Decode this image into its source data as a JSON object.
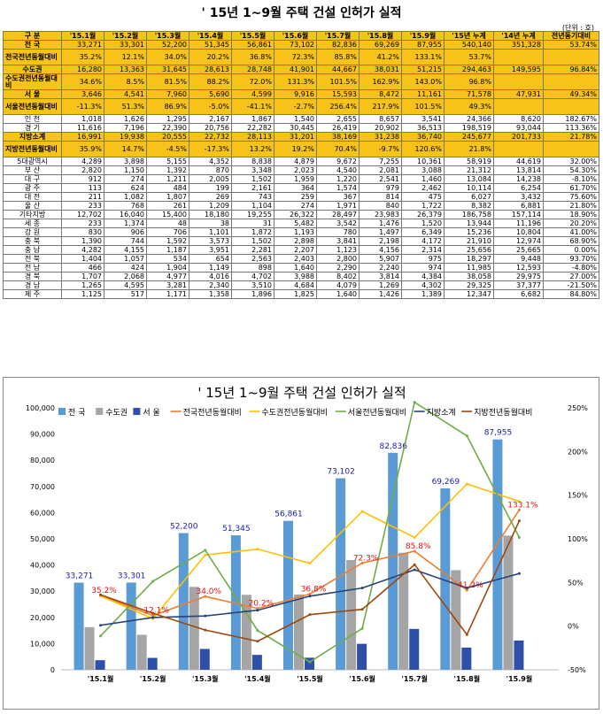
{
  "title": "' 15년 1~9월 주택 건설 인허가 실적",
  "unit": "(단위 : 호)",
  "table": {
    "headers": [
      "구 분",
      "'15.1월",
      "'15.2월",
      "'15.3월",
      "'15.4월",
      "'15.5월",
      "'15.6월",
      "'15.7월",
      "'15.8월",
      "'15.9월",
      "'15년 누계",
      "'14년 누계",
      "전년동기대비"
    ],
    "rows": [
      {
        "label": "전 국",
        "values": [
          "33,271",
          "33,301",
          "52,200",
          "51,345",
          "56,861",
          "73,102",
          "82,836",
          "69,269",
          "87,955",
          "540,140",
          "351,328",
          "53.74%"
        ],
        "hl": true
      },
      {
        "label": "전국전년동월대비",
        "values": [
          "35.2%",
          "12.1%",
          "34.0%",
          "20.2%",
          "36.8%",
          "72.3%",
          "85.8%",
          "41.2%",
          "133.1%",
          "53.7%",
          "",
          ""
        ],
        "hl": true,
        "dbl": true
      },
      {
        "label": "수도권",
        "values": [
          "16,280",
          "13,363",
          "31,645",
          "28,613",
          "28,748",
          "41,901",
          "44,667",
          "38,031",
          "51,215",
          "294,463",
          "149,595",
          "96.84%"
        ],
        "hl": true
      },
      {
        "label": "수도권전년동월대비",
        "values": [
          "34.6%",
          "8.5%",
          "81.5%",
          "88.2%",
          "72.0%",
          "131.3%",
          "101.5%",
          "162.9%",
          "143.0%",
          "96.8%",
          "",
          ""
        ],
        "hl": true,
        "dbl": true
      },
      {
        "label": "서 울",
        "values": [
          "3,646",
          "4,541",
          "7,960",
          "5,690",
          "4,599",
          "9,916",
          "15,593",
          "8,472",
          "11,161",
          "71,578",
          "47,931",
          "49.34%"
        ],
        "hl": true
      },
      {
        "label": "서울전년동월대비",
        "values": [
          "-11.3%",
          "51.3%",
          "86.9%",
          "-5.0%",
          "-41.1%",
          "-2.7%",
          "256.4%",
          "217.9%",
          "101.5%",
          "49.3%",
          "",
          ""
        ],
        "hl": true,
        "dbl": true
      },
      {
        "label": "인 천",
        "values": [
          "1,018",
          "1,626",
          "1,295",
          "2,167",
          "1,867",
          "1,540",
          "2,655",
          "8,657",
          "3,541",
          "24,366",
          "8,620",
          "182.67%"
        ]
      },
      {
        "label": "경 기",
        "values": [
          "11,616",
          "7,196",
          "22,390",
          "20,756",
          "22,282",
          "30,445",
          "26,419",
          "20,902",
          "36,513",
          "198,519",
          "93,044",
          "113.36%"
        ]
      },
      {
        "label": "지방소계",
        "values": [
          "16,991",
          "19,938",
          "20,555",
          "22,732",
          "28,113",
          "31,201",
          "38,169",
          "31,238",
          "36,740",
          "245,677",
          "201,733",
          "21.78%"
        ],
        "hl": true
      },
      {
        "label": "지방전년동월대비",
        "values": [
          "35.9%",
          "14.7%",
          "-4.5%",
          "-17.3%",
          "13.2%",
          "19.2%",
          "70.4%",
          "-9.7%",
          "120.6%",
          "21.8%",
          "",
          ""
        ],
        "hl": true,
        "dbl": true
      },
      {
        "label": "5대광역시",
        "values": [
          "4,289",
          "3,898",
          "5,155",
          "4,352",
          "8,838",
          "4,879",
          "9,672",
          "7,255",
          "10,361",
          "58,919",
          "44,619",
          "32.00%"
        ]
      },
      {
        "label": "부 산",
        "values": [
          "2,820",
          "1,150",
          "1,392",
          "870",
          "3,348",
          "2,023",
          "4,540",
          "2,081",
          "3,088",
          "21,312",
          "13,814",
          "54.30%"
        ]
      },
      {
        "label": "대 구",
        "values": [
          "912",
          "274",
          "1,211",
          "2,005",
          "1,502",
          "1,959",
          "1,220",
          "2,541",
          "1,460",
          "13,084",
          "14,238",
          "-8.10%"
        ]
      },
      {
        "label": "광 주",
        "values": [
          "113",
          "624",
          "484",
          "199",
          "2,161",
          "364",
          "1,574",
          "979",
          "2,462",
          "10,114",
          "6,254",
          "61.70%"
        ]
      },
      {
        "label": "대 전",
        "values": [
          "211",
          "1,082",
          "1,807",
          "269",
          "743",
          "259",
          "367",
          "814",
          "475",
          "6,027",
          "3,432",
          "75.60%"
        ]
      },
      {
        "label": "울 산",
        "values": [
          "233",
          "768",
          "261",
          "1,209",
          "1,104",
          "274",
          "1,971",
          "840",
          "1,722",
          "8,382",
          "6,881",
          "21.80%"
        ]
      },
      {
        "label": "기타지방",
        "values": [
          "12,702",
          "16,040",
          "15,400",
          "18,180",
          "19,255",
          "26,322",
          "28,497",
          "23,983",
          "26,379",
          "186,758",
          "157,114",
          "18.90%"
        ]
      },
      {
        "label": "세 종",
        "values": [
          "233",
          "1,374",
          "48",
          "38",
          "31",
          "5,482",
          "3,542",
          "1,476",
          "1,520",
          "13,944",
          "11,196",
          "20.20%"
        ]
      },
      {
        "label": "강 원",
        "values": [
          "830",
          "906",
          "706",
          "1,101",
          "1,872",
          "1,193",
          "780",
          "1,497",
          "6,349",
          "15,236",
          "10,804",
          "41.00%"
        ]
      },
      {
        "label": "충 북",
        "values": [
          "1,390",
          "744",
          "1,592",
          "3,573",
          "1,502",
          "2,898",
          "3,841",
          "2,198",
          "4,172",
          "21,910",
          "12,974",
          "68.90%"
        ]
      },
      {
        "label": "충 남",
        "values": [
          "4,282",
          "4,155",
          "1,187",
          "3,951",
          "2,281",
          "2,207",
          "1,123",
          "4,156",
          "2,314",
          "25,656",
          "25,665",
          "0.00%"
        ]
      },
      {
        "label": "전 북",
        "values": [
          "1,404",
          "1,057",
          "534",
          "654",
          "2,563",
          "2,403",
          "2,800",
          "5,907",
          "975",
          "18,297",
          "9,448",
          "93.70%"
        ]
      },
      {
        "label": "전 남",
        "values": [
          "466",
          "424",
          "1,904",
          "1,149",
          "898",
          "1,640",
          "2,290",
          "2,240",
          "974",
          "11,985",
          "12,593",
          "-4.80%"
        ]
      },
      {
        "label": "경 북",
        "values": [
          "1,707",
          "2,068",
          "4,977",
          "4,016",
          "4,702",
          "3,988",
          "8,402",
          "3,814",
          "4,384",
          "38,058",
          "29,975",
          "27.00%"
        ]
      },
      {
        "label": "경 남",
        "values": [
          "1,265",
          "4,595",
          "3,281",
          "2,340",
          "3,510",
          "4,684",
          "4,079",
          "1,269",
          "4,302",
          "29,325",
          "37,377",
          "-21.50%"
        ]
      },
      {
        "label": "제 주",
        "values": [
          "1,125",
          "517",
          "1,171",
          "1,358",
          "1,896",
          "1,825",
          "1,640",
          "1,426",
          "1,389",
          "12,347",
          "6,682",
          "84.80%"
        ]
      }
    ]
  },
  "chart_data": {
    "type": "bar",
    "title": "' 15년 1~9월 주택 건설 인허가 실적",
    "categories": [
      "'15.1월",
      "'15.2월",
      "'15.3월",
      "'15.4월",
      "'15.5월",
      "'15.6월",
      "'15.7월",
      "'15.8월",
      "'15.9월"
    ],
    "ylim": [
      0,
      100000
    ],
    "y2lim": [
      -50,
      250
    ],
    "yticks": [
      "100,000",
      "90,000",
      "80,000",
      "70,000",
      "60,000",
      "50,000",
      "40,000",
      "30,000",
      "20,000",
      "10,000",
      "0"
    ],
    "y2ticks": [
      "250%",
      "200%",
      "150%",
      "100%",
      "50%",
      "0%",
      "-50%"
    ],
    "bar_series": [
      {
        "name": "전 국",
        "color": "#5b9bd5",
        "values": [
          33271,
          33301,
          52200,
          51345,
          56861,
          73102,
          82836,
          69269,
          87955
        ],
        "labels": [
          "33,271",
          "33,301",
          "52,200",
          "51,345",
          "56,861",
          "73,102",
          "82,836",
          "69,269",
          "87,955"
        ]
      },
      {
        "name": "수도권",
        "color": "#a5a5a5",
        "values": [
          16280,
          13363,
          31645,
          28613,
          28748,
          41901,
          44667,
          38031,
          51215
        ]
      },
      {
        "name": "서 울",
        "color": "#2f4fa8",
        "values": [
          3646,
          4541,
          7960,
          5690,
          4599,
          9916,
          15593,
          8472,
          11161
        ]
      }
    ],
    "line_series": [
      {
        "name": "전국전년동월대비",
        "color": "#ed7d31",
        "values": [
          35.2,
          12.1,
          34.0,
          20.2,
          36.8,
          72.3,
          85.8,
          41.2,
          133.1
        ],
        "labels": [
          "35.2%",
          "12.1%",
          "34.0%",
          "20.2%",
          "36.8%",
          "72.3%",
          "85.8%",
          "41.2%",
          "133.1%"
        ]
      },
      {
        "name": "수도권전년동월대비",
        "color": "#ffc000",
        "values": [
          34.6,
          8.5,
          81.5,
          88.2,
          72.0,
          131.3,
          101.5,
          162.9,
          143.0
        ]
      },
      {
        "name": "서울전년동월대비",
        "color": "#70ad47",
        "values": [
          -11.3,
          51.3,
          86.9,
          -5.0,
          -41.1,
          -2.7,
          256.4,
          217.9,
          101.5
        ]
      },
      {
        "name": "지방소계",
        "color": "#264478",
        "values": [
          16991,
          19938,
          20555,
          22732,
          28113,
          31201,
          38169,
          31238,
          36740
        ],
        "axis": "left"
      },
      {
        "name": "지방전년동월대비",
        "color": "#9e480e",
        "values": [
          35.9,
          14.7,
          -4.5,
          -17.3,
          13.2,
          19.2,
          70.4,
          -9.7,
          120.6
        ]
      }
    ]
  }
}
